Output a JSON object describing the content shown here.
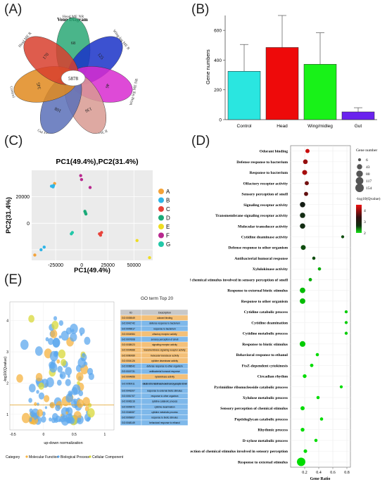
{
  "panels": {
    "a": "(A)",
    "b": "(B)",
    "c": "(C)",
    "d": "(D)",
    "e": "(E)"
  },
  "venn": {
    "title": "Venn Diagram",
    "center_value": "5878",
    "petals": [
      {
        "name": "Head ME NR",
        "value": "68",
        "color": "#2aa876"
      },
      {
        "name": "Wing-leg ME R",
        "value": "125",
        "color": "#1a32c8"
      },
      {
        "name": "Wing-leg ME NR",
        "value": "46",
        "color": "#d82ad0"
      },
      {
        "name": "Gut ME R",
        "value": "136",
        "color": "#d89a92"
      },
      {
        "name": "Gut ME NR",
        "value": "108",
        "color": "#5a70b8"
      },
      {
        "name": "Control",
        "value": "345",
        "color": "#e08a1e"
      },
      {
        "name": "Head ME R",
        "value": "170",
        "color": "#d8402e"
      }
    ]
  },
  "chart_data": [
    {
      "id": "B",
      "type": "bar",
      "categories": [
        "Control",
        "Head",
        "Wing/midleg",
        "Gut"
      ],
      "values": [
        325,
        485,
        372,
        52
      ],
      "errors": [
        180,
        215,
        212,
        28
      ],
      "colors": [
        "#2ae6e0",
        "#ee0a0a",
        "#18f218",
        "#6a22ee"
      ],
      "ylabel": "Gene numbers",
      "ylim": [
        0,
        700
      ],
      "yticks": [
        0,
        200,
        400,
        600
      ]
    },
    {
      "id": "C",
      "type": "scatter",
      "title": "PC1(49.4%),PC2(31.4%)",
      "xlabel": "PC1(49.4%)",
      "ylabel": "PC2(31.4%)",
      "xlim": [
        -48000,
        68000
      ],
      "ylim": [
        -28000,
        40000
      ],
      "xticks": [
        -25000,
        0,
        25000,
        50000
      ],
      "yticks": [
        0,
        20000
      ],
      "ytick_labels": [
        "0",
        "20000"
      ],
      "extra_ytick": {
        "value": -20000,
        "label": "-20000"
      },
      "groups": [
        {
          "name": "A",
          "color": "#f4a33a",
          "points": [
            [
              -45000,
              -24000
            ],
            [
              -26000,
              30000
            ]
          ]
        },
        {
          "name": "B",
          "color": "#2fb5e8",
          "points": [
            [
              -39000,
              -20000
            ],
            [
              -36000,
              -18000
            ],
            [
              -29000,
              28000
            ],
            [
              -27000,
              28500
            ],
            [
              -27500,
              27500
            ]
          ]
        },
        {
          "name": "C",
          "color": "#e8423a",
          "points": [
            [
              17000,
              -8000
            ],
            [
              19000,
              -7000
            ],
            [
              18000,
              -9000
            ]
          ]
        },
        {
          "name": "D",
          "color": "#1aaa78",
          "points": [
            [
              3000,
              9000
            ],
            [
              4000,
              7000
            ],
            [
              3500,
              8000
            ]
          ]
        },
        {
          "name": "E",
          "color": "#eedd22",
          "points": [
            [
              53000,
              -13000
            ],
            [
              65000,
              -26000
            ]
          ]
        },
        {
          "name": "F",
          "color": "#b8288e",
          "points": [
            [
              -1000,
              36000
            ],
            [
              -200,
              33000
            ],
            [
              8000,
              27000
            ]
          ]
        },
        {
          "name": "G",
          "color": "#22c8a8",
          "points": [
            [
              -9000,
              -7000
            ],
            [
              -10000,
              -8000
            ]
          ]
        }
      ]
    },
    {
      "id": "D",
      "type": "scatter",
      "xlabel": "Gene Ratio",
      "xlim": [
        0,
        0.85
      ],
      "xticks": [
        0.2,
        0.4,
        0.6,
        0.8
      ],
      "categories": [
        "Odorant binding",
        "Defense response to bacterium",
        "Response to bacterium",
        "Olfactory receptor activity",
        "Sensory perception of smell",
        "Signaling receptor activity",
        "Transmembrane signaling receptor activity",
        "Molecular transducer activity",
        "Cytidine deaminase activity",
        "Defense response to other organism",
        "Antibacterial humoral response",
        "Xylulokinase activity",
        "Detection of chemical stimulus involved in sensory perception of smell",
        "Response to external biotic stimulus",
        "Response to other organism",
        "Cytidine catabolic process",
        "Cytidine deamination",
        "Cytidine metabolic process",
        "Response to biotic stimulus",
        "Behavioral response to ethanol",
        "FtsZ-dependent cytokinesis",
        "Circadian rhythm",
        "Pyrimidine ribonucleoside catabolic process",
        "Xylulose metabolic process",
        "Sensory perception of chemical stimulus",
        "Peptidoglycan catabolic process",
        "Rhythmic process",
        "D-xylose metabolic process",
        "Detection of chemical stimulus involved in sensory perception",
        "Response to external stimulus"
      ],
      "points": [
        {
          "x": 0.24,
          "size": 20,
          "q": 4.3
        },
        {
          "x": 0.21,
          "size": 30,
          "q": 4.0
        },
        {
          "x": 0.2,
          "size": 35,
          "q": 4.1
        },
        {
          "x": 0.23,
          "size": 20,
          "q": 3.8
        },
        {
          "x": 0.22,
          "size": 20,
          "q": 3.7
        },
        {
          "x": 0.17,
          "size": 45,
          "q": 3.2
        },
        {
          "x": 0.17,
          "size": 45,
          "q": 3.1
        },
        {
          "x": 0.17,
          "size": 45,
          "q": 3.1
        },
        {
          "x": 0.74,
          "size": 6,
          "q": 2.9
        },
        {
          "x": 0.18,
          "size": 35,
          "q": 2.9
        },
        {
          "x": 0.33,
          "size": 8,
          "q": 2.9
        },
        {
          "x": 0.41,
          "size": 8,
          "q": 2.3
        },
        {
          "x": 0.28,
          "size": 10,
          "q": 2.3
        },
        {
          "x": 0.17,
          "size": 50,
          "q": 2.2
        },
        {
          "x": 0.17,
          "size": 50,
          "q": 2.2
        },
        {
          "x": 0.79,
          "size": 6,
          "q": 2.1
        },
        {
          "x": 0.79,
          "size": 6,
          "q": 2.1
        },
        {
          "x": 0.79,
          "size": 6,
          "q": 2.1
        },
        {
          "x": 0.17,
          "size": 55,
          "q": 2.1
        },
        {
          "x": 0.38,
          "size": 8,
          "q": 2.0
        },
        {
          "x": 0.3,
          "size": 10,
          "q": 2.0
        },
        {
          "x": 0.2,
          "size": 15,
          "q": 2.0
        },
        {
          "x": 0.72,
          "size": 6,
          "q": 2.0
        },
        {
          "x": 0.39,
          "size": 8,
          "q": 2.0
        },
        {
          "x": 0.17,
          "size": 20,
          "q": 2.0
        },
        {
          "x": 0.44,
          "size": 8,
          "q": 2.0
        },
        {
          "x": 0.17,
          "size": 15,
          "q": 2.0
        },
        {
          "x": 0.36,
          "size": 8,
          "q": 2.0
        },
        {
          "x": 0.21,
          "size": 12,
          "q": 2.0
        },
        {
          "x": 0.15,
          "size": 154,
          "q": 2.0
        }
      ],
      "size_legend": {
        "title": "Gene number",
        "values": [
          6,
          43,
          80,
          117,
          154
        ]
      },
      "color_legend": {
        "title": "-log10(Qvalue)",
        "ticks": [
          4,
          3,
          2
        ],
        "range": [
          2,
          4.5
        ]
      }
    },
    {
      "id": "E",
      "type": "scatter",
      "xlabel": "up-down normalization",
      "ylabel": "-log10(Qvalue)",
      "xlim": [
        -0.55,
        1.15
      ],
      "xticks": [
        -0.5,
        0,
        0.5,
        1
      ],
      "xtick_labels": [
        "-0.5",
        "0",
        "0.5",
        "1"
      ],
      "ylim": [
        0.5,
        4.6
      ],
      "yticks": [
        1,
        2,
        3,
        4
      ],
      "threshold_y": 1.3,
      "legend": {
        "label": "Category",
        "items": [
          {
            "name": "Molecular Function",
            "color": "#f6b340"
          },
          {
            "name": "Biological Process",
            "color": "#5ea8ee"
          },
          {
            "name": "Cellular Component",
            "color": "#d8d838"
          }
        ]
      }
    }
  ],
  "go_table": {
    "title": "GO term Top 20",
    "headers": [
      "ID",
      "Description"
    ],
    "rows": [
      {
        "id": "GO:0005549",
        "desc": "odorant binding",
        "cat": "MF"
      },
      {
        "id": "GO:0042742",
        "desc": "defense response to bacterium",
        "cat": "BP"
      },
      {
        "id": "GO:0009617",
        "desc": "response to bacterium",
        "cat": "BP"
      },
      {
        "id": "GO:0004984",
        "desc": "olfactory receptor activity",
        "cat": "MF"
      },
      {
        "id": "GO:0007608",
        "desc": "sensory perception of smell",
        "cat": "BP"
      },
      {
        "id": "GO:0038023",
        "desc": "signaling receptor activity",
        "cat": "MF"
      },
      {
        "id": "GO:0004888",
        "desc": "transmembrane signaling receptor activity",
        "cat": "MF"
      },
      {
        "id": "GO:0060089",
        "desc": "molecular transducer activity",
        "cat": "MF"
      },
      {
        "id": "GO:0004126",
        "desc": "cytidine deaminase activity",
        "cat": "MF"
      },
      {
        "id": "GO:0098542",
        "desc": "defense response to other organism",
        "cat": "BP"
      },
      {
        "id": "GO:0019731",
        "desc": "antibacterial humoral response",
        "cat": "BP"
      },
      {
        "id": "GO:0004856",
        "desc": "xylulokinase activity",
        "cat": "MF"
      },
      {
        "id": "GO:0050911",
        "desc": "detection of chemical stimulus involved in sensory perception of smell",
        "cat": "BP"
      },
      {
        "id": "GO:0043207",
        "desc": "response to external biotic stimulus",
        "cat": "BP"
      },
      {
        "id": "GO:0051707",
        "desc": "response to other organism",
        "cat": "BP"
      },
      {
        "id": "GO:0006216",
        "desc": "cytidine catabolic process",
        "cat": "BP"
      },
      {
        "id": "GO:0009972",
        "desc": "cytidine deamination",
        "cat": "BP"
      },
      {
        "id": "GO:0046087",
        "desc": "cytidine metabolic process",
        "cat": "BP"
      },
      {
        "id": "GO:0009607",
        "desc": "response to biotic stimulus",
        "cat": "BP"
      },
      {
        "id": "GO:0048149",
        "desc": "behavioral response to ethanol",
        "cat": "BP"
      }
    ]
  }
}
